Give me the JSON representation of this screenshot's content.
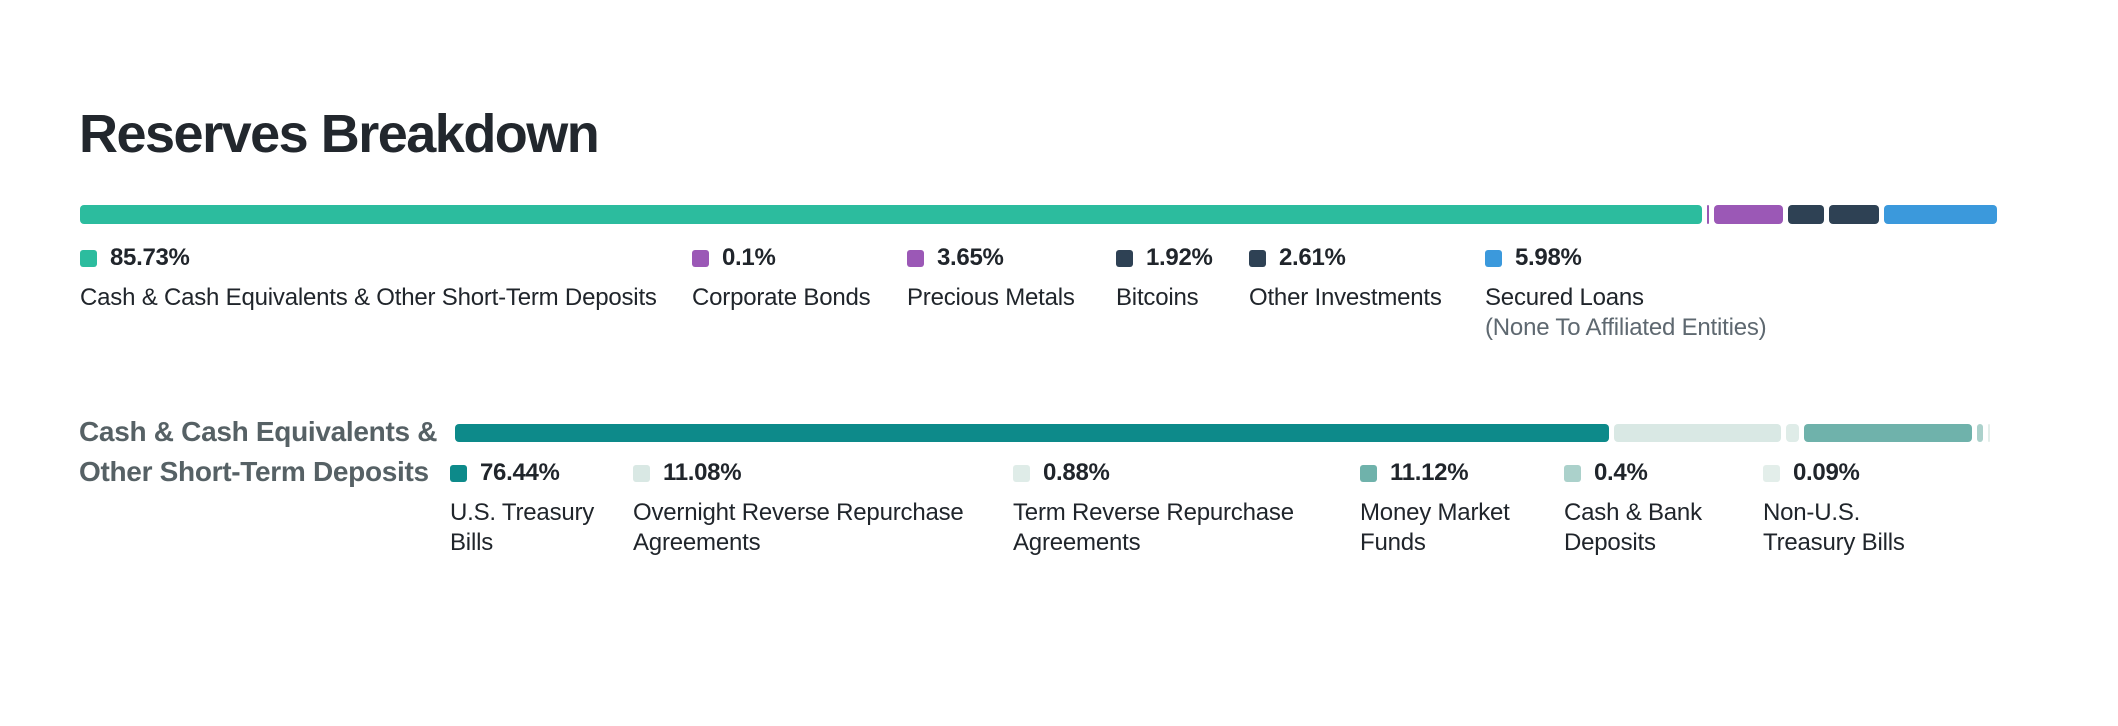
{
  "title": "Reserves Breakdown",
  "section2_heading": "Cash & Cash Equivalents & Other Short-Term Deposits",
  "colors": {
    "background": "#ffffff",
    "title_text": "#22272D",
    "label_text": "#20252B",
    "sublabel_text": "#5E6870",
    "section_heading_text": "#566165"
  },
  "chart_data": [
    {
      "type": "bar",
      "subtype": "horizontal-stacked",
      "title": "Reserves Breakdown",
      "unit": "%",
      "xlim": [
        0,
        100
      ],
      "legend_position": "below",
      "segments": [
        {
          "label": "Cash & Cash Equivalents & Other Short-Term Deposits",
          "value": 85.73,
          "display": "85.73%",
          "color": "#2CBC9E"
        },
        {
          "label": "Corporate Bonds",
          "value": 0.1,
          "display": "0.1%",
          "color": "#9B58B6"
        },
        {
          "label": "Precious Metals",
          "value": 3.65,
          "display": "3.65%",
          "color": "#9B58B6"
        },
        {
          "label": "Bitcoins",
          "value": 1.92,
          "display": "1.92%",
          "color": "#2E4154"
        },
        {
          "label": "Other Investments",
          "value": 2.61,
          "display": "2.61%",
          "color": "#2E4154"
        },
        {
          "label": "Secured Loans",
          "sublabel": "(None To Affiliated Entities)",
          "value": 5.98,
          "display": "5.98%",
          "color": "#3B99DC"
        }
      ]
    },
    {
      "type": "bar",
      "subtype": "horizontal-stacked",
      "title": "Cash & Cash Equivalents & Other Short-Term Deposits",
      "unit": "%",
      "xlim": [
        0,
        100
      ],
      "legend_position": "below",
      "segments": [
        {
          "label": "U.S. Treasury Bills",
          "value": 76.44,
          "display": "76.44%",
          "color": "#0D8A8A"
        },
        {
          "label": "Overnight Reverse Repurchase Agreements",
          "value": 11.08,
          "display": "11.08%",
          "color": "#D9E8E4"
        },
        {
          "label": "Term Reverse Repurchase Agreements",
          "value": 0.88,
          "display": "0.88%",
          "color": "#DFECE8"
        },
        {
          "label": "Money Market Funds",
          "value": 11.12,
          "display": "11.12%",
          "color": "#6FB2AB"
        },
        {
          "label": "Cash & Bank Deposits",
          "value": 0.4,
          "display": "0.4%",
          "color": "#ABD1CB"
        },
        {
          "label": "Non-U.S. Treasury Bills",
          "value": 0.09,
          "display": "0.09%",
          "color": "#E3EEEA"
        }
      ]
    }
  ]
}
